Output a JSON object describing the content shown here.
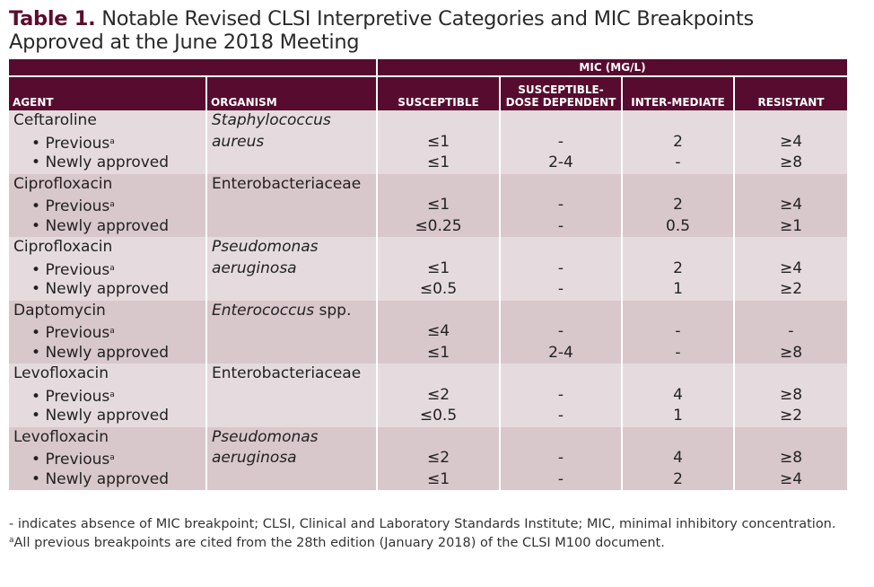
{
  "title": {
    "label": "Table 1.",
    "text": " Notable Revised CLSI Interpretive Categories and MIC Breakpoints",
    "text2": "Approved at the June 2018 Meeting"
  },
  "header": {
    "mic_group": "MIC (MG/L)",
    "columns": [
      "AGENT",
      "ORGANISM",
      "SUSCEPTIBLE",
      "SUSCEPTIBLE-DOSE DEPENDENT",
      "INTER-MEDIATE",
      "RESISTANT"
    ]
  },
  "row_labels": {
    "previous": "Previous",
    "newly": "Newly approved",
    "bullet": "•",
    "footnote_mark": "a"
  },
  "rows": [
    {
      "agent": "Ceftaroline",
      "organism": [
        [
          {
            "t": "Staphylococcus",
            "i": true
          }
        ],
        [
          {
            "t": "aureus",
            "i": true
          }
        ]
      ],
      "previous": [
        "≤1",
        "-",
        "2",
        "≥4"
      ],
      "newly": [
        "≤1",
        "2-4",
        "-",
        "≥8"
      ]
    },
    {
      "agent": "Ciprofloxacin",
      "organism": [
        [
          {
            "t": "Enterobacteriaceae",
            "i": false
          }
        ]
      ],
      "previous": [
        "≤1",
        "-",
        "2",
        "≥4"
      ],
      "newly": [
        "≤0.25",
        "-",
        "0.5",
        "≥1"
      ]
    },
    {
      "agent": "Ciprofloxacin",
      "organism": [
        [
          {
            "t": "Pseudomonas",
            "i": true
          }
        ],
        [
          {
            "t": "aeruginosa",
            "i": true
          }
        ]
      ],
      "previous": [
        "≤1",
        "-",
        "2",
        "≥4"
      ],
      "newly": [
        "≤0.5",
        "-",
        "1",
        "≥2"
      ]
    },
    {
      "agent": "Daptomycin",
      "organism": [
        [
          {
            "t": "Enterococcus",
            "i": true
          },
          {
            "t": " spp.",
            "i": false
          }
        ]
      ],
      "previous": [
        "≤4",
        "-",
        "-",
        "-"
      ],
      "newly": [
        "≤1",
        "2-4",
        "-",
        "≥8"
      ]
    },
    {
      "agent": "Levofloxacin",
      "organism": [
        [
          {
            "t": "Enterobacteriaceae",
            "i": false
          }
        ]
      ],
      "previous": [
        "≤2",
        "-",
        "4",
        "≥8"
      ],
      "newly": [
        "≤0.5",
        "-",
        "1",
        "≥2"
      ]
    },
    {
      "agent": "Levofloxacin",
      "organism": [
        [
          {
            "t": "Pseudomonas",
            "i": true
          }
        ],
        [
          {
            "t": "aeruginosa",
            "i": true
          }
        ]
      ],
      "previous": [
        "≤2",
        "-",
        "4",
        "≥8"
      ],
      "newly": [
        "≤1",
        "-",
        "2",
        "≥4"
      ]
    }
  ],
  "footnotes": {
    "line1": "- indicates absence of MIC breakpoint; CLSI, Clinical and Laboratory Standards Institute; MIC, minimal inhibitory concentration.",
    "mark": "a",
    "line2": "All previous breakpoints are cited from the 28th edition (January 2018) of the CLSI M100 document."
  },
  "colors": {
    "header": "#570c2f",
    "row_light": "#e5dbde",
    "row_dark": "#d8c7cb"
  }
}
